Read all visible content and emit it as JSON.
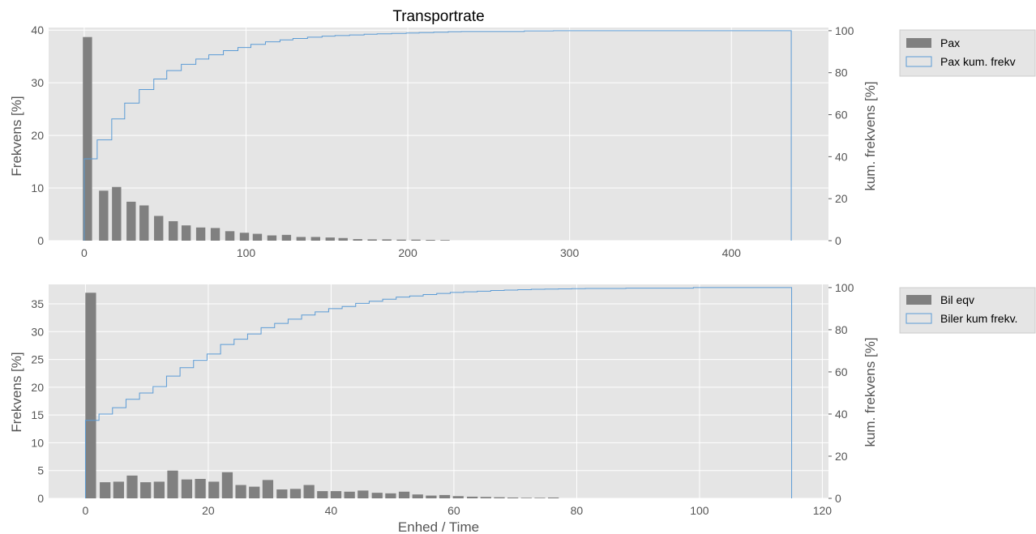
{
  "figure": {
    "title": "Transportrate"
  },
  "colors": {
    "panel_bg": "#e5e5e5",
    "grid": "#ffffff",
    "bar": "#808080",
    "cum_line": "#5b9bd5",
    "legend_bg": "#e5e5e5"
  },
  "chart_data": [
    {
      "type": "bar",
      "title": "Transportrate",
      "xlabel": "",
      "ylabel": "Frekvens [%]",
      "y2label": "kum. frekvens [%]",
      "xlim": [
        -22,
        460
      ],
      "ylim": [
        0,
        40.5
      ],
      "y2lim": [
        0,
        101.5
      ],
      "xticks": [
        0,
        100,
        200,
        300,
        400
      ],
      "yticks": [
        0,
        10,
        20,
        30,
        40
      ],
      "y2ticks": [
        0,
        20,
        40,
        60,
        80,
        100
      ],
      "grid": true,
      "legend_position": "outside-top-right",
      "bar_width": 5.7,
      "series": [
        {
          "name": "Pax",
          "kind": "hist",
          "x": [
            2,
            12,
            20,
            29,
            37,
            46,
            55,
            63,
            72,
            81,
            90,
            99,
            107,
            116,
            125,
            134,
            143,
            152,
            160,
            169,
            178,
            187,
            196,
            205,
            214,
            223
          ],
          "values": [
            38.7,
            9.5,
            10.2,
            7.4,
            6.7,
            4.7,
            3.7,
            2.9,
            2.5,
            2.4,
            1.8,
            1.5,
            1.3,
            1.0,
            1.1,
            0.7,
            0.7,
            0.6,
            0.5,
            0.3,
            0.25,
            0.25,
            0.2,
            0.2,
            0.15,
            0.12
          ]
        },
        {
          "name": "Pax kum. frekv",
          "kind": "step",
          "axis": "right",
          "x": [
            0,
            8,
            17,
            25,
            34,
            43,
            51,
            60,
            69,
            77,
            86,
            95,
            103,
            112,
            121,
            129,
            138,
            147,
            155,
            164,
            173,
            181,
            190,
            199,
            207,
            216,
            225,
            233,
            272,
            290,
            375,
            437
          ],
          "y": [
            39,
            48,
            58,
            65.5,
            72,
            77,
            81,
            84,
            86.5,
            88.5,
            90.5,
            92,
            93.5,
            94.7,
            95.6,
            96.3,
            96.9,
            97.4,
            97.7,
            98.0,
            98.3,
            98.5,
            98.7,
            98.9,
            99.1,
            99.3,
            99.5,
            99.6,
            99.9,
            100,
            100,
            100
          ]
        }
      ]
    },
    {
      "type": "bar",
      "title": "",
      "xlabel": "Enhed / Time",
      "ylabel": "Frekvens [%]",
      "y2label": "kum. frekvens [%]",
      "xlim": [
        -6,
        121
      ],
      "ylim": [
        0,
        38.5
      ],
      "y2lim": [
        0,
        101.5
      ],
      "xticks": [
        0,
        20,
        40,
        60,
        80,
        100,
        120
      ],
      "yticks": [
        0,
        5,
        10,
        15,
        20,
        25,
        30,
        35
      ],
      "y2ticks": [
        0,
        20,
        40,
        60,
        80,
        100
      ],
      "grid": true,
      "legend_position": "outside-top-right",
      "bar_width": 1.75,
      "series": [
        {
          "name": "Bil eqv",
          "kind": "hist",
          "x": [
            0.85,
            3.2,
            5.4,
            7.6,
            9.8,
            12,
            14.2,
            16.5,
            18.7,
            20.9,
            23.1,
            25.3,
            27.5,
            29.7,
            32,
            34.2,
            36.4,
            38.6,
            40.8,
            43,
            45.2,
            47.5,
            49.7,
            51.9,
            54.1,
            56.3,
            58.5,
            60.7,
            63,
            65.2,
            67.4,
            69.6,
            71.8,
            74,
            76.2
          ],
          "values": [
            37,
            2.9,
            3.0,
            4.1,
            2.9,
            3.0,
            5.0,
            3.4,
            3.5,
            3.0,
            4.7,
            2.4,
            2.1,
            3.3,
            1.6,
            1.7,
            2.4,
            1.3,
            1.3,
            1.2,
            1.4,
            1.0,
            0.9,
            1.2,
            0.7,
            0.5,
            0.6,
            0.4,
            0.3,
            0.25,
            0.2,
            0.15,
            0.1,
            0.1,
            0.15
          ]
        },
        {
          "name": "Biler kum frekv.",
          "kind": "step",
          "axis": "right",
          "x": [
            0,
            2.2,
            4.4,
            6.6,
            8.8,
            11,
            13.2,
            15.4,
            17.6,
            19.8,
            22,
            24.2,
            26.4,
            28.6,
            30.8,
            33,
            35.2,
            37.4,
            39.6,
            41.8,
            44,
            46.2,
            48.4,
            50.6,
            52.8,
            55,
            57.2,
            59.4,
            61.6,
            63.8,
            66,
            68.2,
            70.4,
            72.6,
            74.8,
            77,
            79.2,
            81.4,
            88,
            99,
            115
          ],
          "y": [
            37,
            40,
            43,
            47,
            50,
            53,
            58,
            62,
            65.5,
            68.5,
            73,
            75.5,
            78,
            81,
            83,
            85,
            87,
            88.5,
            90,
            91,
            92.5,
            93.5,
            94.5,
            95.5,
            96,
            96.7,
            97.2,
            97.7,
            98.0,
            98.3,
            98.6,
            98.8,
            99.0,
            99.2,
            99.3,
            99.4,
            99.5,
            99.6,
            99.7,
            100,
            100
          ]
        }
      ]
    }
  ]
}
